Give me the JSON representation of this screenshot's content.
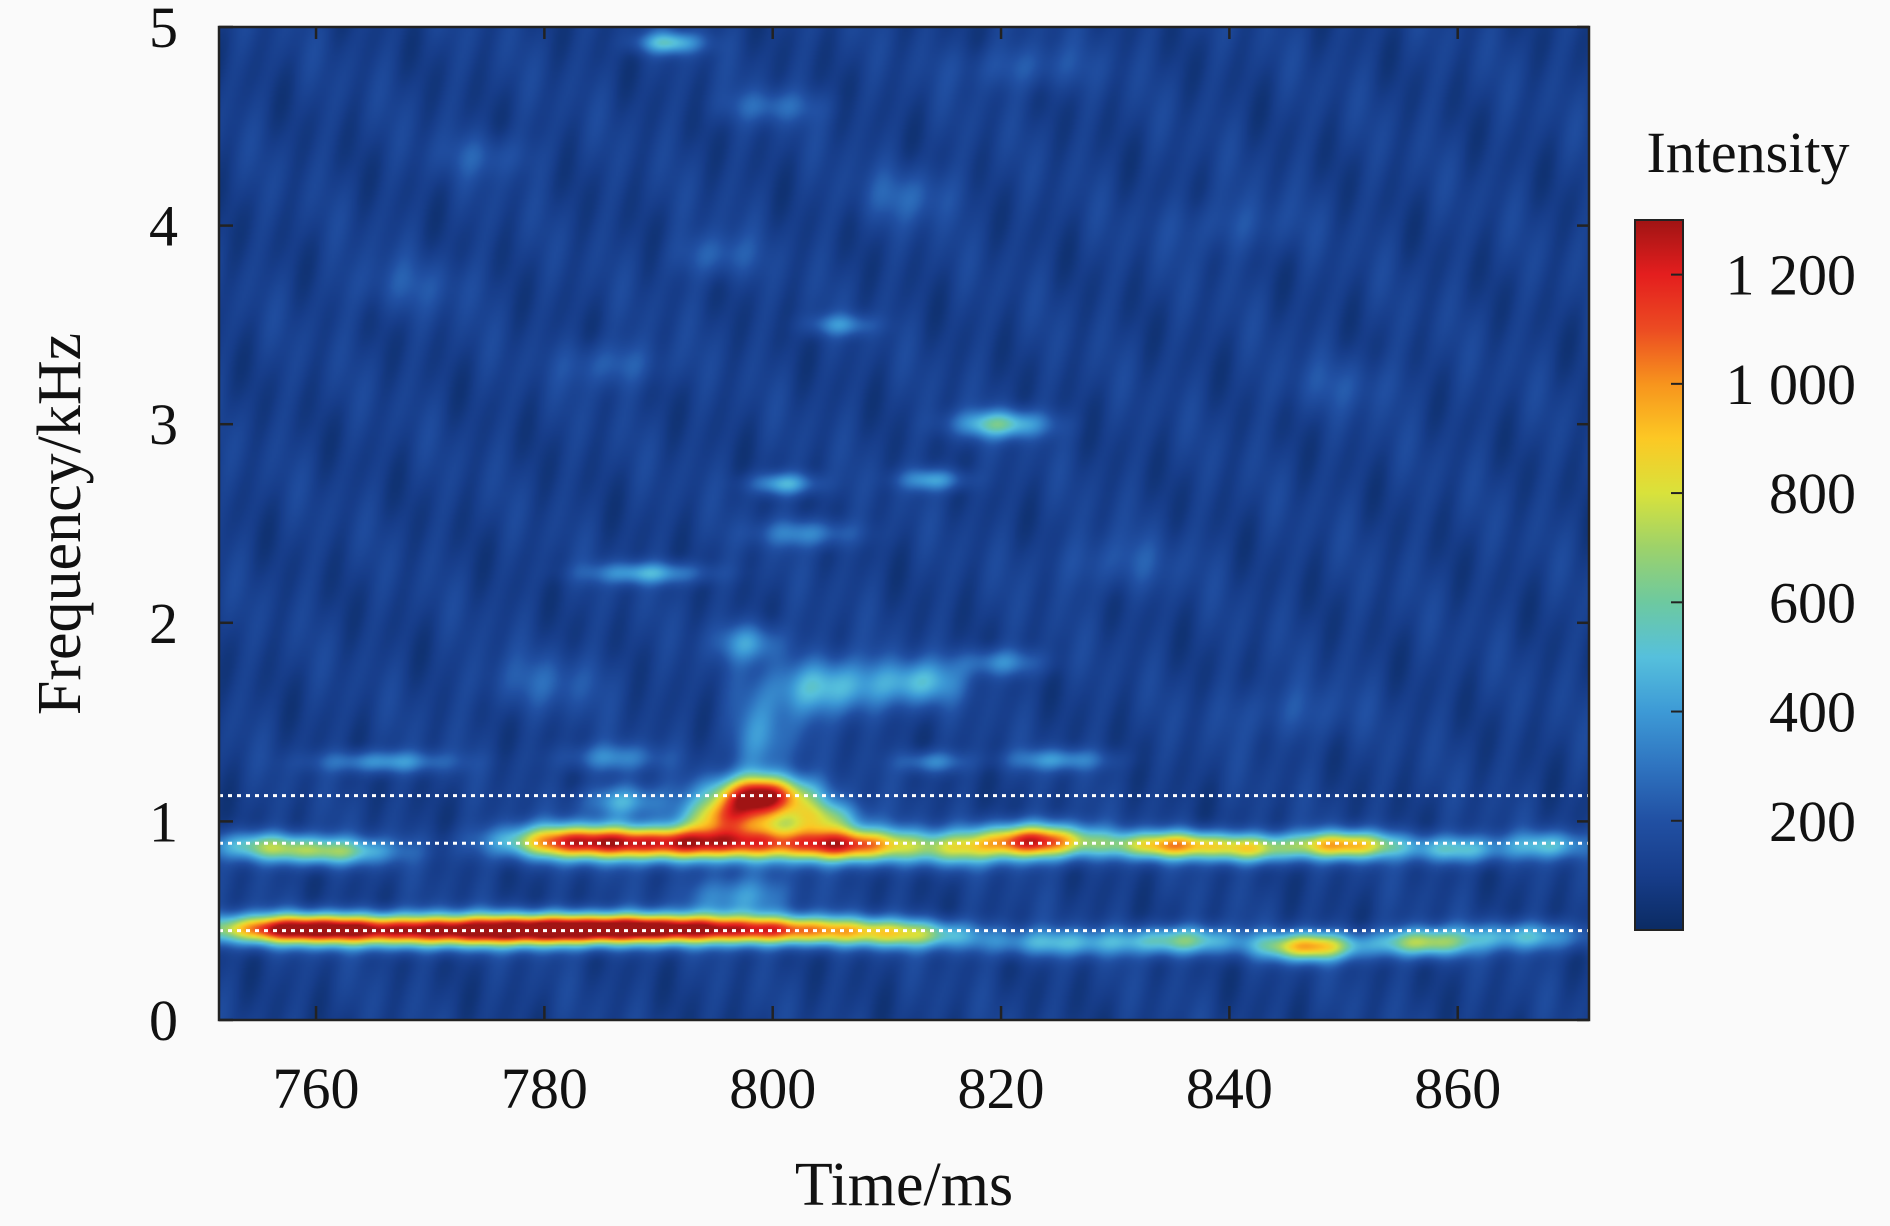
{
  "chart_data": {
    "type": "heatmap",
    "title": "",
    "xlabel": "Time/ms",
    "ylabel": "Frequency/kHz",
    "xlim": [
      751.5,
      871.5
    ],
    "ylim": [
      0,
      5
    ],
    "x_ticks": [
      760,
      780,
      800,
      820,
      840,
      860
    ],
    "y_ticks": [
      0,
      1,
      2,
      3,
      4,
      5
    ],
    "x_tick_labels": [
      "760",
      "780",
      "800",
      "820",
      "840",
      "860"
    ],
    "y_tick_labels": [
      "0",
      "1",
      "2",
      "3",
      "4",
      "5"
    ],
    "colorbar": {
      "label": "Intensity",
      "range": [
        0,
        1300
      ],
      "ticks": [
        200,
        400,
        600,
        800,
        1000,
        1200
      ],
      "tick_labels": [
        "200",
        "400",
        "600",
        "800",
        "1 000",
        "1 200"
      ],
      "colormap": [
        "#0b2b63",
        "#173d8a",
        "#2150a3",
        "#2f74c0",
        "#3d9ad6",
        "#56c0dc",
        "#6dc9a0",
        "#9dd26a",
        "#d9e23b",
        "#fcc824",
        "#f7941d",
        "#ec4b22",
        "#e41e1e",
        "#a01414"
      ]
    },
    "reference_lines_kHz": [
      1.13,
      0.89,
      0.45
    ],
    "hotspots": [
      {
        "t_ms": 778,
        "f_kHz": 0.45,
        "intensity": 1300
      },
      {
        "t_ms": 800,
        "f_kHz": 0.45,
        "intensity": 1200
      },
      {
        "t_ms": 843,
        "f_kHz": 0.4,
        "intensity": 1050
      },
      {
        "t_ms": 795,
        "f_kHz": 0.89,
        "intensity": 1300
      },
      {
        "t_ms": 799,
        "f_kHz": 1.13,
        "intensity": 1300
      },
      {
        "t_ms": 823,
        "f_kHz": 0.89,
        "intensity": 1250
      },
      {
        "t_ms": 835,
        "f_kHz": 0.88,
        "intensity": 1100
      },
      {
        "t_ms": 851,
        "f_kHz": 0.88,
        "intensity": 1150
      },
      {
        "t_ms": 760,
        "f_kHz": 0.85,
        "intensity": 800
      },
      {
        "t_ms": 805,
        "f_kHz": 1.7,
        "intensity": 600
      },
      {
        "t_ms": 820,
        "f_kHz": 3.0,
        "intensity": 500
      },
      {
        "t_ms": 791,
        "f_kHz": 4.9,
        "intensity": 400
      }
    ]
  }
}
